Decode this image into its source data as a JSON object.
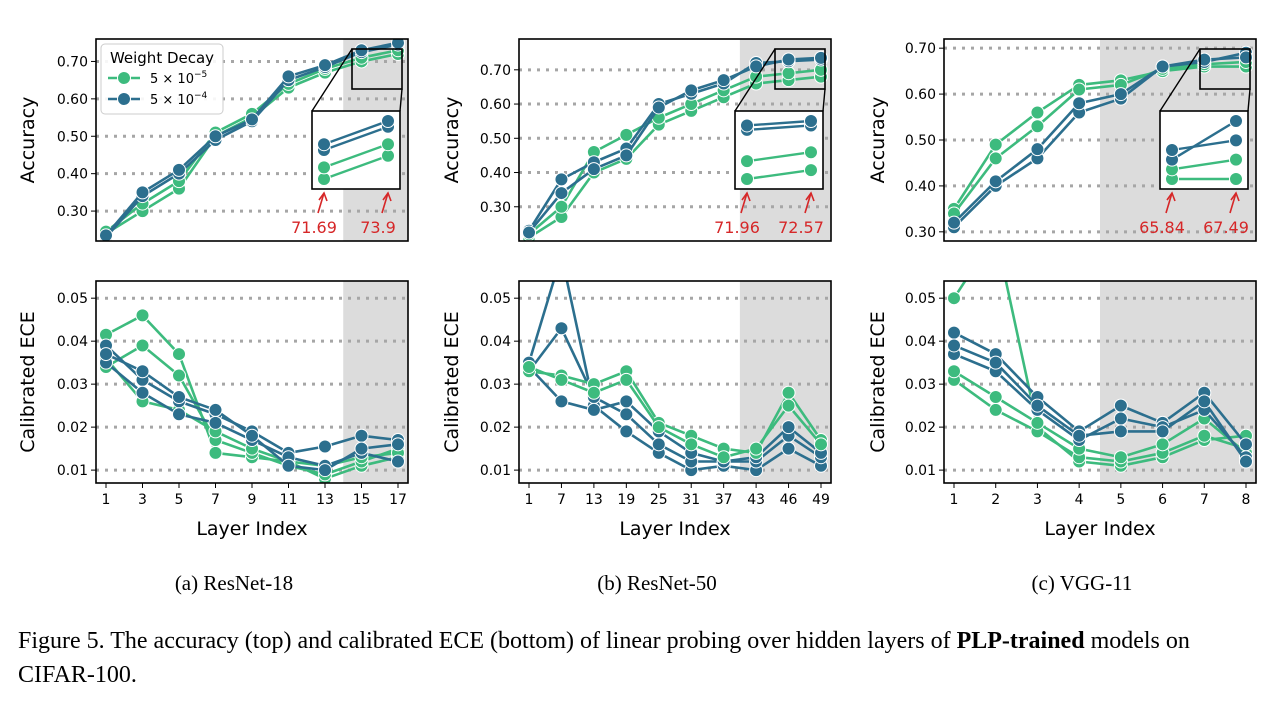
{
  "figure": {
    "caption_pre": "Figure 5. The accuracy (top) and calibrated ECE (bottom) of linear probing over hidden layers of ",
    "caption_bold": "PLP-trained",
    "caption_post": " models on CIFAR-100.",
    "legend": {
      "title": "Weight Decay",
      "entries": [
        {
          "base": "5 × 10",
          "exp": "−5"
        },
        {
          "base": "5 × 10",
          "exp": "−4"
        }
      ]
    },
    "colors": {
      "low_wd": "#3dbb7e",
      "high_wd": "#2c6f8e",
      "annotation": "#d62728",
      "shade": "#dcdcdc"
    }
  },
  "chart_data": [
    {
      "type": "line",
      "panel": "(a) ResNet-18",
      "xlabel": "Layer Index",
      "x": [
        1,
        3,
        5,
        7,
        9,
        11,
        13,
        15,
        17
      ],
      "shaded_from_x": 14,
      "accuracy": {
        "ylabel": "Accuracy",
        "ylim": [
          0.22,
          0.76
        ],
        "yticks": [
          "0.30",
          "0.40",
          "0.50",
          "0.60",
          "0.70"
        ],
        "series": [
          {
            "group": "low",
            "values": [
              0.24,
              0.3,
              0.36,
              0.5,
              0.55,
              0.63,
              0.67,
              0.7,
              0.72
            ]
          },
          {
            "group": "low",
            "values": [
              0.245,
              0.32,
              0.38,
              0.51,
              0.56,
              0.64,
              0.68,
              0.71,
              0.73
            ]
          },
          {
            "group": "high",
            "values": [
              0.23,
              0.34,
              0.4,
              0.49,
              0.54,
              0.65,
              0.685,
              0.725,
              0.745
            ]
          },
          {
            "group": "high",
            "values": [
              0.235,
              0.35,
              0.41,
              0.5,
              0.545,
              0.66,
              0.69,
              0.73,
              0.75
            ]
          }
        ],
        "annotations": [
          "71.69",
          "73.9"
        ]
      },
      "ece": {
        "ylabel": "Calibrated ECE",
        "ylim": [
          0.007,
          0.054
        ],
        "yticks": [
          "0.01",
          "0.02",
          "0.03",
          "0.04",
          "0.05"
        ],
        "series": [
          {
            "group": "low",
            "values": [
              0.0415,
              0.046,
              0.037,
              0.014,
              0.013,
              0.012,
              0.008,
              0.011,
              0.013
            ]
          },
          {
            "group": "low",
            "values": [
              0.034,
              0.039,
              0.032,
              0.017,
              0.014,
              0.011,
              0.009,
              0.012,
              0.015
            ]
          },
          {
            "group": "low",
            "values": [
              0.036,
              0.026,
              0.024,
              0.019,
              0.015,
              0.012,
              0.011,
              0.013,
              0.014
            ]
          },
          {
            "group": "high",
            "values": [
              0.039,
              0.031,
              0.026,
              0.023,
              0.019,
              0.014,
              0.0155,
              0.018,
              0.017
            ]
          },
          {
            "group": "high",
            "values": [
              0.035,
              0.028,
              0.023,
              0.021,
              0.017,
              0.013,
              0.011,
              0.014,
              0.012
            ]
          },
          {
            "group": "high",
            "values": [
              0.037,
              0.033,
              0.027,
              0.024,
              0.018,
              0.011,
              0.01,
              0.015,
              0.016
            ]
          }
        ]
      }
    },
    {
      "type": "line",
      "panel": "(b) ResNet-50",
      "xlabel": "Layer Index",
      "x": [
        1,
        7,
        13,
        19,
        25,
        31,
        37,
        43,
        46,
        49
      ],
      "shaded_from_x": 40,
      "accuracy": {
        "ylabel": "Accuracy",
        "ylim": [
          0.2,
          0.79
        ],
        "yticks": [
          "0.30",
          "0.40",
          "0.50",
          "0.60",
          "0.70"
        ],
        "series": [
          {
            "group": "low",
            "values": [
              0.21,
              0.27,
              0.4,
              0.44,
              0.54,
              0.58,
              0.62,
              0.66,
              0.67,
              0.68
            ]
          },
          {
            "group": "low",
            "values": [
              0.22,
              0.3,
              0.46,
              0.51,
              0.56,
              0.6,
              0.64,
              0.68,
              0.69,
              0.7
            ]
          },
          {
            "group": "high",
            "values": [
              0.23,
              0.38,
              0.43,
              0.47,
              0.6,
              0.63,
              0.66,
              0.72,
              0.725,
              0.73
            ]
          },
          {
            "group": "high",
            "values": [
              0.225,
              0.34,
              0.41,
              0.45,
              0.59,
              0.64,
              0.67,
              0.71,
              0.73,
              0.735
            ]
          }
        ],
        "annotations": [
          "71.96",
          "72.57"
        ]
      },
      "ece": {
        "ylabel": "Calibrated ECE",
        "ylim": [
          0.007,
          0.054
        ],
        "yticks": [
          "0.01",
          "0.02",
          "0.03",
          "0.04",
          "0.05"
        ],
        "series": [
          {
            "group": "high",
            "values": [
              0.035,
              0.06,
              0.025,
              0.019,
              0.014,
              0.01,
              0.011,
              0.01,
              0.015,
              0.011
            ]
          },
          {
            "group": "high",
            "values": [
              0.033,
              0.043,
              0.027,
              0.023,
              0.016,
              0.012,
              0.012,
              0.012,
              0.018,
              0.013
            ]
          },
          {
            "group": "high",
            "values": [
              0.034,
              0.026,
              0.024,
              0.026,
              0.019,
              0.014,
              0.012,
              0.013,
              0.02,
              0.014
            ]
          },
          {
            "group": "low",
            "values": [
              0.033,
              0.032,
              0.03,
              0.033,
              0.021,
              0.018,
              0.015,
              0.014,
              0.028,
              0.017
            ]
          },
          {
            "group": "low",
            "values": [
              0.034,
              0.031,
              0.028,
              0.031,
              0.02,
              0.016,
              0.013,
              0.015,
              0.025,
              0.016
            ]
          }
        ]
      }
    },
    {
      "type": "line",
      "panel": "(c) VGG-11",
      "xlabel": "Layer Index",
      "x": [
        1,
        2,
        3,
        4,
        5,
        6,
        7,
        8
      ],
      "shaded_from_x": 4.5,
      "accuracy": {
        "ylabel": "Accuracy",
        "ylim": [
          0.28,
          0.72
        ],
        "yticks": [
          "0.30",
          "0.40",
          "0.50",
          "0.60",
          "0.70"
        ],
        "series": [
          {
            "group": "low",
            "values": [
              0.35,
              0.49,
              0.56,
              0.62,
              0.63,
              0.65,
              0.66,
              0.66
            ]
          },
          {
            "group": "low",
            "values": [
              0.34,
              0.46,
              0.53,
              0.61,
              0.62,
              0.655,
              0.665,
              0.67
            ]
          },
          {
            "group": "high",
            "values": [
              0.31,
              0.4,
              0.46,
              0.56,
              0.59,
              0.66,
              0.67,
              0.69
            ]
          },
          {
            "group": "high",
            "values": [
              0.32,
              0.41,
              0.48,
              0.58,
              0.6,
              0.66,
              0.675,
              0.68
            ]
          }
        ],
        "annotations": [
          "65.84",
          "67.49"
        ]
      },
      "ece": {
        "ylabel": "Calibrated ECE",
        "ylim": [
          0.007,
          0.054
        ],
        "yticks": [
          "0.01",
          "0.02",
          "0.03",
          "0.04",
          "0.05"
        ],
        "series": [
          {
            "group": "low",
            "values": [
              0.05,
              0.065,
              0.02,
              0.012,
              0.011,
              0.013,
              0.017,
              0.018
            ]
          },
          {
            "group": "low",
            "values": [
              0.031,
              0.024,
              0.019,
              0.013,
              0.012,
              0.014,
              0.018,
              0.015
            ]
          },
          {
            "group": "low",
            "values": [
              0.033,
              0.027,
              0.021,
              0.015,
              0.013,
              0.016,
              0.022,
              0.014
            ]
          },
          {
            "group": "high",
            "values": [
              0.042,
              0.037,
              0.027,
              0.019,
              0.025,
              0.021,
              0.028,
              0.016
            ]
          },
          {
            "group": "high",
            "values": [
              0.037,
              0.033,
              0.024,
              0.017,
              0.022,
              0.02,
              0.024,
              0.013
            ]
          },
          {
            "group": "high",
            "values": [
              0.039,
              0.035,
              0.025,
              0.018,
              0.019,
              0.019,
              0.026,
              0.012
            ]
          }
        ]
      }
    }
  ]
}
